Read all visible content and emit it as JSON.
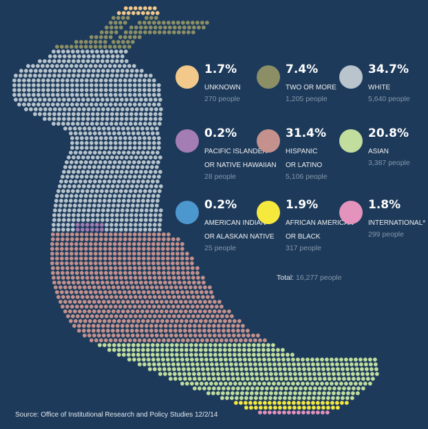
{
  "chart_data": {
    "type": "dot-matrix",
    "categories": [
      {
        "key": "unknown",
        "percent": "1.7%",
        "label_lines": [
          "UNKNOWN"
        ],
        "people": "270 people",
        "count": 270,
        "color": "#f2c98a"
      },
      {
        "key": "two_or_more",
        "percent": "7.4%",
        "label_lines": [
          "TWO OR MORE"
        ],
        "people": "1,205 people",
        "count": 1205,
        "color": "#8c8f65"
      },
      {
        "key": "white",
        "percent": "34.7%",
        "label_lines": [
          "WHITE"
        ],
        "people": "5,640 people",
        "count": 5640,
        "color": "#b9c4cc"
      },
      {
        "key": "pacific_islander",
        "percent": "0.2%",
        "label_lines": [
          "PACIFIC ISLANDER",
          "OR NATIVE HAWAIIAN"
        ],
        "people": "28 people",
        "count": 28,
        "color": "#a47db5"
      },
      {
        "key": "hispanic",
        "percent": "31.4%",
        "label_lines": [
          "HISPANIC",
          "OR LATINO"
        ],
        "people": "5,106 people",
        "count": 5106,
        "color": "#c4918d"
      },
      {
        "key": "asian",
        "percent": "20.8%",
        "label_lines": [
          "ASIAN"
        ],
        "people": "3,387 people",
        "count": 3387,
        "color": "#c2de9e"
      },
      {
        "key": "american_indian",
        "percent": "0.2%",
        "label_lines": [
          "AMERICAN INDIAN",
          "OR ALASKAN NATIVE"
        ],
        "people": "25 people",
        "count": 25,
        "color": "#4d97cf"
      },
      {
        "key": "african_american",
        "percent": "1.9%",
        "label_lines": [
          "AFRICAN AMERICAN",
          "OR BLACK"
        ],
        "people": "317 people",
        "count": 317,
        "color": "#f6e93e"
      },
      {
        "key": "international",
        "percent": "1.8%",
        "label_lines": [
          "INTERNATIONAL*"
        ],
        "people": "299 people",
        "count": 299,
        "color": "#e493bd"
      }
    ],
    "total_label": "Total:",
    "total_value": "16,277 people",
    "source": "Source:  Office of Institutional Research and Policy Studies 12/2/14"
  }
}
